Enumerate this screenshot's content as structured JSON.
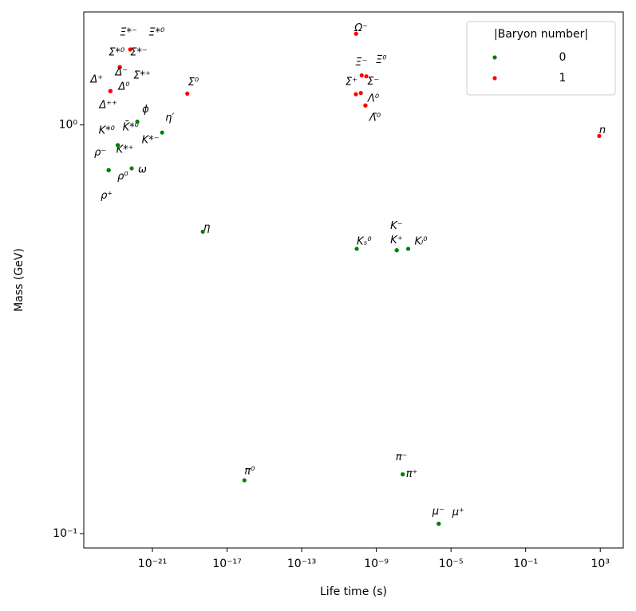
{
  "chart_data": {
    "type": "scatter",
    "xlabel": "Life time (s)",
    "ylabel": "Mass (GeV)",
    "xscale": "log",
    "yscale": "log",
    "xlim": [
      2.1e-25,
      17000.0
    ],
    "ylim": [
      0.0922,
      1.89
    ],
    "xticks": [
      {
        "value": 1e-21,
        "label": "10⁻²¹"
      },
      {
        "value": 1e-17,
        "label": "10⁻¹⁷"
      },
      {
        "value": 1e-13,
        "label": "10⁻¹³"
      },
      {
        "value": 1e-09,
        "label": "10⁻⁹"
      },
      {
        "value": 1e-05,
        "label": "10⁻⁵"
      },
      {
        "value": 0.1,
        "label": "10⁻¹"
      },
      {
        "value": 1000,
        "label": "10³"
      }
    ],
    "yticks": [
      {
        "value": 0.1,
        "label": "10⁻¹"
      },
      {
        "value": 1,
        "label": "10⁰"
      }
    ],
    "legend_title": "|Baryon number|",
    "legend": "upper right",
    "series": [
      {
        "name": "0",
        "color": "#008000",
        "labels": [
          "ρ⁺",
          "ρ⁻",
          "ρ⁰",
          "ω",
          "K*⁰",
          "K̄*⁰",
          "K*⁺",
          "K*⁻",
          "ϕ",
          "η′",
          "η",
          "π⁰",
          "π⁻",
          "π⁺",
          "μ⁻",
          "μ⁺",
          "Kₛ⁰",
          "K⁻",
          "K⁺",
          "Kₗ⁰"
        ],
        "x": [
          4.5e-24,
          4.5e-24,
          4.5e-24,
          7.75e-23,
          1.4e-23,
          1.4e-23,
          1.4e-23,
          1.4e-23,
          1.55e-22,
          3.3e-21,
          5e-19,
          8.5e-17,
          2.6e-08,
          2.6e-08,
          2.2e-06,
          2.2e-06,
          8.9e-11,
          1.24e-08,
          1.24e-08,
          5.1e-08
        ],
        "values": [
          0.775,
          0.775,
          0.775,
          0.783,
          0.892,
          0.892,
          0.892,
          0.892,
          1.019,
          0.958,
          0.548,
          0.135,
          0.1396,
          0.1396,
          0.1057,
          0.1057,
          0.4976,
          0.4937,
          0.4937,
          0.4976
        ]
      },
      {
        "name": "1",
        "color": "#ff0000",
        "labels": [
          "Ξ*⁻",
          "Ξ*⁰",
          "Σ*⁰",
          "Σ*⁻",
          "Σ*⁺",
          "Δ⁺⁺",
          "Δ⁺",
          "Δ⁰",
          "Δ⁻",
          "Σ⁰",
          "Ω⁻",
          "Ξ⁻",
          "Ξ⁰",
          "Σ⁺",
          "Σ⁻",
          "Λ⁰",
          "Λ̄⁰",
          "n"
        ],
        "x": [
          6.5e-23,
          6.5e-23,
          1.8e-23,
          1.8e-23,
          1.8e-23,
          5.6e-24,
          5.6e-24,
          5.6e-24,
          5.6e-24,
          7.4e-20,
          8.2e-11,
          1.64e-10,
          2.9e-10,
          8e-11,
          1.48e-10,
          2.6e-10,
          2.6e-10,
          880
        ],
        "values": [
          1.53,
          1.53,
          1.385,
          1.385,
          1.385,
          1.21,
          1.21,
          1.21,
          1.21,
          1.193,
          1.672,
          1.322,
          1.315,
          1.189,
          1.197,
          1.116,
          1.116,
          0.9396
        ]
      }
    ]
  }
}
